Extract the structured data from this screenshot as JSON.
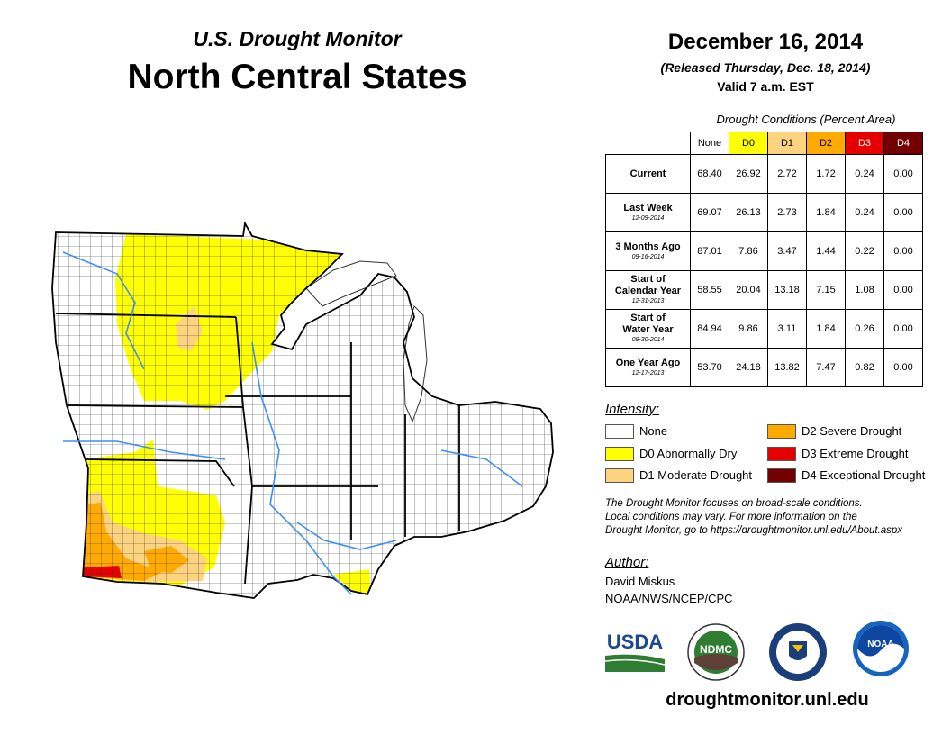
{
  "header": {
    "subtitle": "U.S. Drought Monitor",
    "title": "North Central States"
  },
  "date_block": {
    "date": "December 16, 2014",
    "released": "(Released Thursday, Dec. 18, 2014)",
    "valid": "Valid 7 a.m. EST"
  },
  "table": {
    "caption": "Drought Conditions (Percent Area)",
    "columns": [
      "None",
      "D0",
      "D1",
      "D2",
      "D3",
      "D4"
    ],
    "column_colors": [
      "#ffffff",
      "#ffff00",
      "#fcd37f",
      "#ffaa00",
      "#e60000",
      "#730000"
    ],
    "rows": [
      {
        "label_line1": "Current",
        "label_line2": "",
        "date": "",
        "values": [
          "68.40",
          "26.92",
          "2.72",
          "1.72",
          "0.24",
          "0.00"
        ]
      },
      {
        "label_line1": "Last Week",
        "label_line2": "",
        "date": "12-09-2014",
        "values": [
          "69.07",
          "26.13",
          "2.73",
          "1.84",
          "0.24",
          "0.00"
        ]
      },
      {
        "label_line1": "3 Months Ago",
        "label_line2": "",
        "date": "09-16-2014",
        "values": [
          "87.01",
          "7.86",
          "3.47",
          "1.44",
          "0.22",
          "0.00"
        ]
      },
      {
        "label_line1": "Start of",
        "label_line2": "Calendar Year",
        "date": "12-31-2013",
        "values": [
          "58.55",
          "20.04",
          "13.18",
          "7.15",
          "1.08",
          "0.00"
        ]
      },
      {
        "label_line1": "Start of",
        "label_line2": "Water Year",
        "date": "09-30-2014",
        "values": [
          "84.94",
          "9.86",
          "3.11",
          "1.84",
          "0.26",
          "0.00"
        ]
      },
      {
        "label_line1": "One Year Ago",
        "label_line2": "",
        "date": "12-17-2013",
        "values": [
          "53.70",
          "24.18",
          "13.82",
          "7.47",
          "0.82",
          "0.00"
        ]
      }
    ]
  },
  "legend": {
    "heading": "Intensity:",
    "items": [
      {
        "label": "None",
        "color": "#ffffff"
      },
      {
        "label": "D0 Abnormally Dry",
        "color": "#ffff00"
      },
      {
        "label": "D1 Moderate Drought",
        "color": "#fcd37f"
      },
      {
        "label": "D2 Severe Drought",
        "color": "#ffaa00"
      },
      {
        "label": "D3 Extreme Drought",
        "color": "#e60000"
      },
      {
        "label": "D4 Exceptional Drought",
        "color": "#730000"
      }
    ]
  },
  "note": {
    "line1": "The Drought Monitor focuses on broad-scale conditions.",
    "line2": "Local conditions may vary. For more information on the",
    "line3": "Drought Monitor, go to https://droughtmonitor.unl.edu/About.aspx"
  },
  "author": {
    "heading": "Author:",
    "name": "David Miskus",
    "org": "NOAA/NWS/NCEP/CPC"
  },
  "logos": {
    "usda": "USDA",
    "ndmc": "NDMC",
    "noaa": "NOAA"
  },
  "website": "droughtmonitor.unl.edu"
}
